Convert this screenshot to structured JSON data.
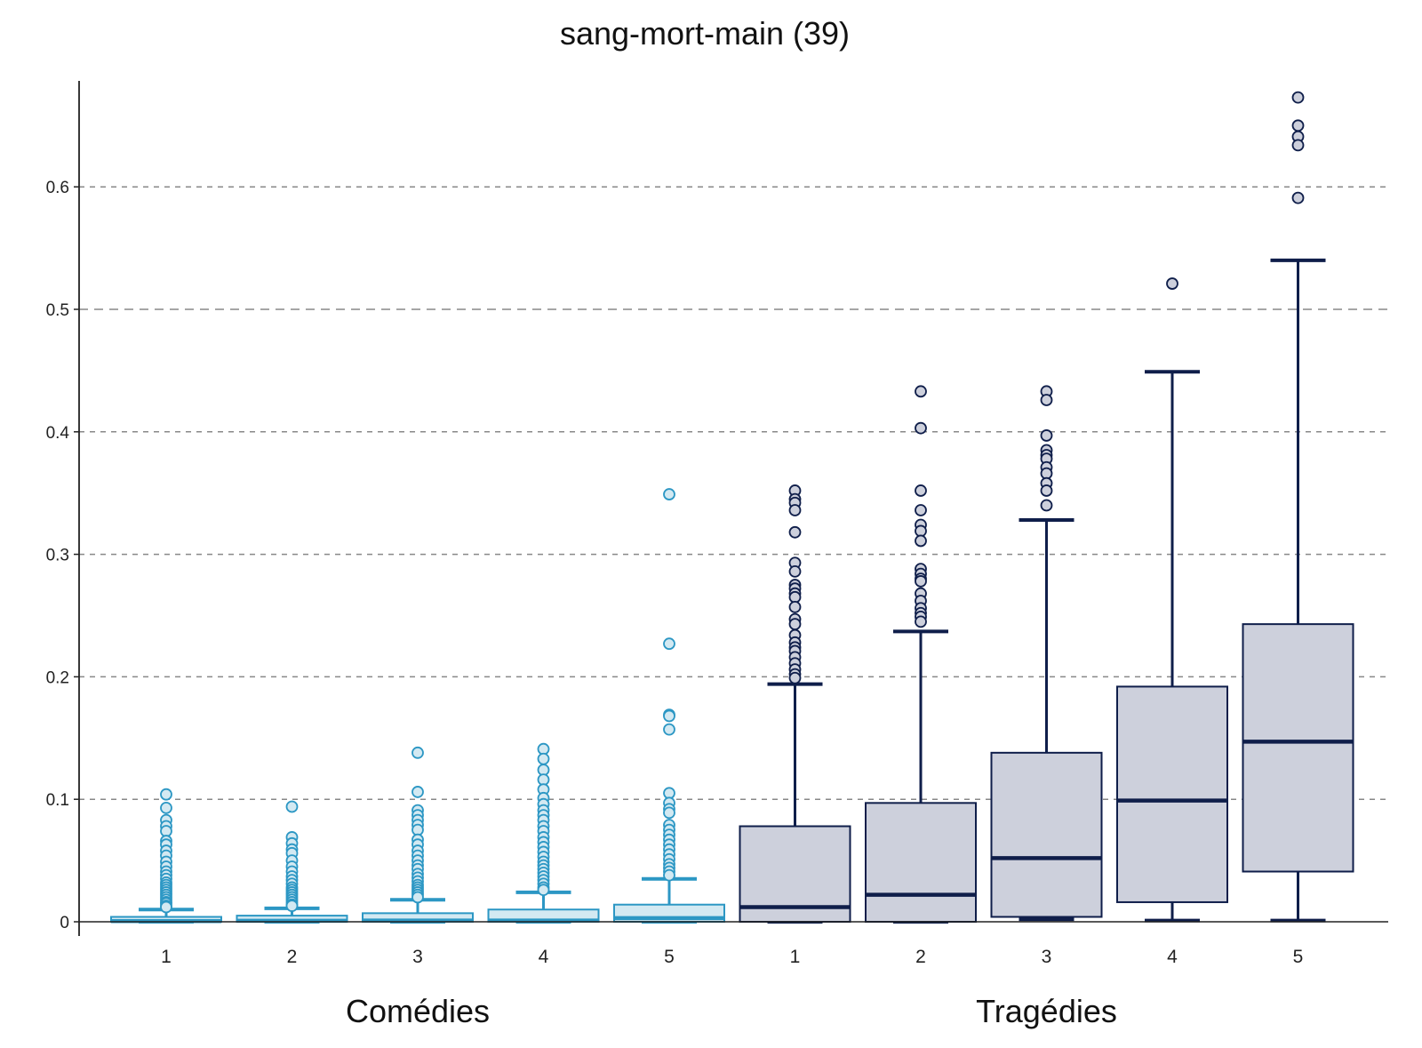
{
  "chart_data": {
    "type": "boxplot",
    "title": "sang-mort-main (39)",
    "y_ticks": [
      "0",
      "0.1",
      "0.2",
      "0.3",
      "0.4",
      "0.5",
      "0.6"
    ],
    "ylim": [
      -0.012,
      0.685
    ],
    "grid": "horizontal dashed",
    "colors": {
      "comedy_stroke": "#2c97c4",
      "comedy_fill": "#d3e9f2",
      "tragedy_stroke": "#0f1e4a",
      "tragedy_fill": "#cdd0dc",
      "grid": "#888888"
    },
    "groups": [
      {
        "name": "Comédies",
        "style": "comedy",
        "boxes": [
          {
            "label": "1",
            "q1": 0.0,
            "median": 0.0005,
            "q3": 0.004,
            "whisker_low": 0.0,
            "whisker_high": 0.01,
            "outliers": [
              0.104,
              0.093,
              0.083,
              0.078,
              0.074,
              0.066,
              0.063,
              0.058,
              0.054,
              0.049,
              0.045,
              0.041,
              0.038,
              0.035,
              0.032,
              0.03,
              0.028,
              0.026,
              0.024,
              0.022,
              0.02,
              0.018,
              0.016,
              0.015,
              0.013,
              0.012
            ]
          },
          {
            "label": "2",
            "q1": 0.0,
            "median": 0.0008,
            "q3": 0.005,
            "whisker_low": 0.0,
            "whisker_high": 0.011,
            "outliers": [
              0.094,
              0.069,
              0.064,
              0.059,
              0.056,
              0.05,
              0.045,
              0.041,
              0.037,
              0.034,
              0.031,
              0.028,
              0.026,
              0.024,
              0.022,
              0.02,
              0.018,
              0.016,
              0.014,
              0.013
            ]
          },
          {
            "label": "3",
            "q1": 0.0,
            "median": 0.001,
            "q3": 0.007,
            "whisker_low": 0.0,
            "whisker_high": 0.018,
            "outliers": [
              0.138,
              0.106,
              0.091,
              0.087,
              0.083,
              0.079,
              0.075,
              0.067,
              0.063,
              0.058,
              0.054,
              0.05,
              0.046,
              0.043,
              0.039,
              0.036,
              0.033,
              0.03,
              0.028,
              0.026,
              0.024,
              0.022,
              0.02
            ]
          },
          {
            "label": "4",
            "q1": 0.0,
            "median": 0.001,
            "q3": 0.01,
            "whisker_low": 0.0,
            "whisker_high": 0.024,
            "outliers": [
              0.141,
              0.133,
              0.124,
              0.116,
              0.108,
              0.101,
              0.096,
              0.091,
              0.087,
              0.083,
              0.078,
              0.074,
              0.069,
              0.065,
              0.061,
              0.057,
              0.053,
              0.049,
              0.046,
              0.043,
              0.04,
              0.037,
              0.034,
              0.031,
              0.028,
              0.026
            ]
          },
          {
            "label": "5",
            "q1": 0.0,
            "median": 0.003,
            "q3": 0.014,
            "whisker_low": 0.0,
            "whisker_high": 0.035,
            "outliers": [
              0.349,
              0.227,
              0.169,
              0.168,
              0.157,
              0.105,
              0.097,
              0.092,
              0.089,
              0.079,
              0.075,
              0.071,
              0.067,
              0.063,
              0.059,
              0.055,
              0.051,
              0.047,
              0.044,
              0.041,
              0.038
            ]
          }
        ]
      },
      {
        "name": "Tragédies",
        "style": "tragedy",
        "boxes": [
          {
            "label": "1",
            "q1": 0.0,
            "median": 0.012,
            "q3": 0.078,
            "whisker_low": 0.0,
            "whisker_high": 0.194,
            "outliers": [
              0.352,
              0.345,
              0.342,
              0.336,
              0.318,
              0.293,
              0.286,
              0.275,
              0.272,
              0.268,
              0.265,
              0.257,
              0.247,
              0.243,
              0.234,
              0.228,
              0.224,
              0.221,
              0.216,
              0.211,
              0.206,
              0.202,
              0.199
            ]
          },
          {
            "label": "2",
            "q1": 0.0,
            "median": 0.022,
            "q3": 0.097,
            "whisker_low": 0.0,
            "whisker_high": 0.237,
            "outliers": [
              0.433,
              0.403,
              0.352,
              0.336,
              0.324,
              0.319,
              0.311,
              0.288,
              0.284,
              0.28,
              0.278,
              0.268,
              0.262,
              0.256,
              0.252,
              0.249,
              0.245
            ]
          },
          {
            "label": "3",
            "q1": 0.004,
            "median": 0.052,
            "q3": 0.138,
            "whisker_low": 0.002,
            "whisker_high": 0.328,
            "outliers": [
              0.433,
              0.426,
              0.397,
              0.385,
              0.381,
              0.378,
              0.371,
              0.366,
              0.358,
              0.352,
              0.34
            ]
          },
          {
            "label": "4",
            "q1": 0.016,
            "median": 0.099,
            "q3": 0.192,
            "whisker_low": 0.001,
            "whisker_high": 0.449,
            "outliers": [
              0.521
            ]
          },
          {
            "label": "5",
            "q1": 0.041,
            "median": 0.147,
            "q3": 0.243,
            "whisker_low": 0.001,
            "whisker_high": 0.54,
            "outliers": [
              0.673,
              0.65,
              0.641,
              0.634,
              0.591
            ]
          }
        ]
      }
    ]
  }
}
